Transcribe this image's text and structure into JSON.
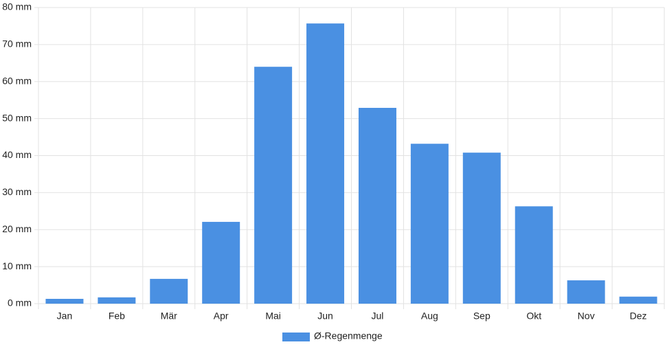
{
  "chart_data": {
    "type": "bar",
    "categories": [
      "Jan",
      "Feb",
      "Mär",
      "Apr",
      "Mai",
      "Jun",
      "Jul",
      "Aug",
      "Sep",
      "Okt",
      "Nov",
      "Dez"
    ],
    "series": [
      {
        "name": "Ø-Regenmenge",
        "color": "#4a90e2",
        "values": [
          1.3,
          1.7,
          6.7,
          22.1,
          64.0,
          75.7,
          52.9,
          43.2,
          40.8,
          26.3,
          6.3,
          1.9
        ]
      }
    ],
    "ylim": [
      0,
      80
    ],
    "yticks": [
      {
        "value": 0,
        "label": "0 mm"
      },
      {
        "value": 10,
        "label": "10 mm"
      },
      {
        "value": 20,
        "label": "20 mm"
      },
      {
        "value": 30,
        "label": "30 mm"
      },
      {
        "value": 40,
        "label": "40 mm"
      },
      {
        "value": 50,
        "label": "50 mm"
      },
      {
        "value": 60,
        "label": "60 mm"
      },
      {
        "value": 70,
        "label": "70 mm"
      },
      {
        "value": 80,
        "label": "80 mm"
      }
    ],
    "grid": true,
    "legend": "bottom"
  }
}
